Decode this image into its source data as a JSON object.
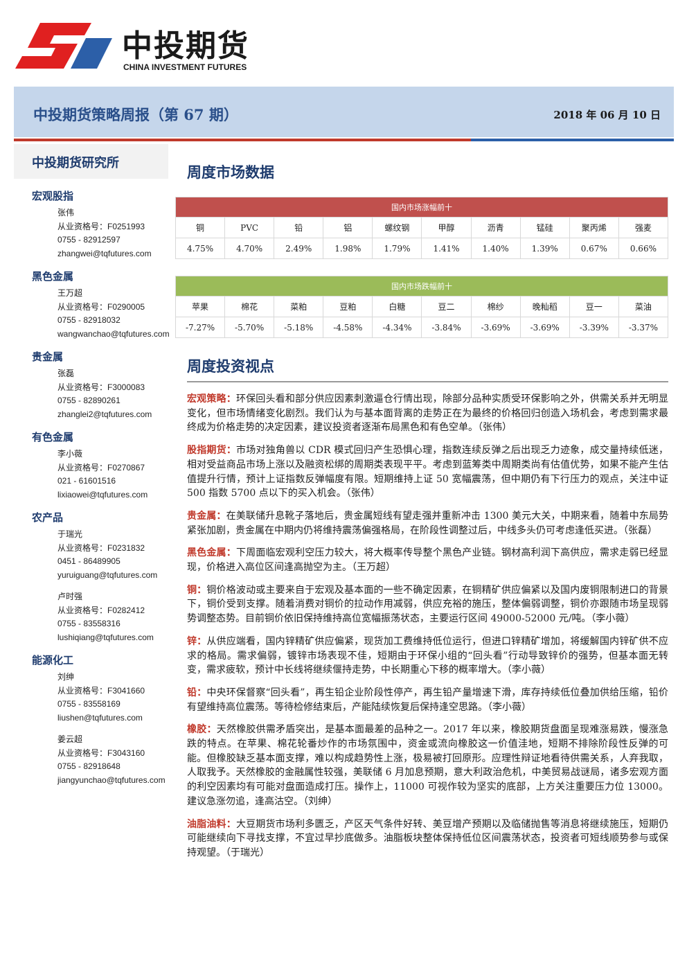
{
  "header": {
    "logo_cn": "中投期货",
    "logo_en": "CHINA INVESTMENT FUTURES",
    "title": "中投期货策略周报（第 67 期）",
    "date": "2018 年 06 月 10 日"
  },
  "sidebar": {
    "institute": "中投期货研究所",
    "sections": [
      {
        "title": "宏观股指",
        "analysts": [
          {
            "name": "张伟",
            "license": "从业资格号：F0251993",
            "phone": "0755 - 82912597",
            "email": "zhangwei@tqfutures.com"
          }
        ]
      },
      {
        "title": "黑色金属",
        "analysts": [
          {
            "name": "王万超",
            "license": "从业资格号：F0290005",
            "phone": "0755 - 82918032",
            "email": "wangwanchao@tqfutures.com"
          }
        ]
      },
      {
        "title": "贵金属",
        "analysts": [
          {
            "name": "张磊",
            "license": "从业资格号：F3000083",
            "phone": "0755 - 82890261",
            "email": "zhanglei2@tqfutures.com"
          }
        ]
      },
      {
        "title": "有色金属",
        "analysts": [
          {
            "name": "李小薇",
            "license": "从业资格号：F0270867",
            "phone": "021 - 61601516",
            "email": "lixiaowei@tqfutures.com"
          }
        ]
      },
      {
        "title": "农产品",
        "analysts": [
          {
            "name": "于瑞光",
            "license": "从业资格号：F0231832",
            "phone": "0451 - 86489905",
            "email": "yuruiguang@tqfutures.com"
          },
          {
            "name": "卢时强",
            "license": "从业资格号：F0282412",
            "phone": "0755 - 83558316",
            "email": "lushiqiang@tqfutures.com"
          }
        ]
      },
      {
        "title": "能源化工",
        "analysts": [
          {
            "name": "刘绅",
            "license": "从业资格号：F3041660",
            "phone": "0755 - 83558169",
            "email": "liushen@tqfutures.com"
          },
          {
            "name": "姜云超",
            "license": "从业资格号：F3043160",
            "phone": "0755 - 82918648",
            "email": "jiangyunchao@tqfutures.com"
          }
        ]
      }
    ]
  },
  "market": {
    "title": "周度市场数据",
    "tables": [
      {
        "caption": "国内市场涨幅前十",
        "headers": [
          "铜",
          "PVC",
          "铅",
          "铝",
          "螺纹钢",
          "甲醇",
          "沥青",
          "锰硅",
          "聚丙烯",
          "强麦"
        ],
        "values": [
          "4.75%",
          "4.70%",
          "2.49%",
          "1.98%",
          "1.79%",
          "1.41%",
          "1.40%",
          "1.39%",
          "0.67%",
          "0.66%"
        ]
      },
      {
        "caption": "国内市场跌幅前十",
        "headers": [
          "苹果",
          "棉花",
          "菜粕",
          "豆粕",
          "白糖",
          "豆二",
          "棉纱",
          "晚籼稻",
          "豆一",
          "菜油"
        ],
        "values": [
          "-7.27%",
          "-5.70%",
          "-5.18%",
          "-4.58%",
          "-4.34%",
          "-3.84%",
          "-3.69%",
          "-3.69%",
          "-3.39%",
          "-3.37%"
        ]
      }
    ]
  },
  "views": {
    "title": "周度投资视点",
    "paragraphs": [
      {
        "label": "宏观策略：",
        "text": "环保回头看和部分供应因素刺激逼仓行情出现，除部分品种实质受环保影响之外，供需关系并无明显变化，但市场情绪变化剧烈。我们认为与基本面背离的走势正在为最终的价格回归创造入场机会，考虑到需求最终成为价格走势的决定因素，建议投资者逐渐布局黑色和有色空单。（张伟）"
      },
      {
        "label": "股指期货：",
        "text": "市场对独角兽以 CDR 模式回归产生恐惧心理，指数连续反弹之后出现乏力迹象，成交量持续低迷，相对受益商品市场上涨以及融资松绑的周期类表现平平。考虑到蓝筹类中周期类尚有估值优势，如果不能产生估值提升行情，预计上证指数反弹幅度有限。短期维持上证 50 宽幅震荡，但中期仍有下行压力的观点，关注中证 500 指数 5700 点以下的买入机会。（张伟）"
      },
      {
        "label": "贵金属：",
        "text": "在美联储升息靴子落地后，贵金属短线有望走强并重新冲击 1300 美元大关，中期来看，随着中东局势紧张加剧，贵金属在中期内仍将维持震荡偏强格局，在阶段性调整过后，中线多头仍可考虑逢低买进。（张磊）"
      },
      {
        "label": "黑色金属：",
        "text": "下周面临宏观利空压力较大，将大概率传导整个黑色产业链。钢材高利润下高供应，需求走弱已经显现，价格进入高位区间逢高抛空为主。（王万超）"
      },
      {
        "label": "铜：",
        "text": "铜价格波动或主要来自于宏观及基本面的一些不确定因素，在铜精矿供应偏紧以及国内废铜限制进口的背景下，铜价受到支撑。随着消费对铜价的拉动作用减弱，供应充裕的施压，整体偏弱调整，铜价亦跟随市场呈现弱势调整态势。目前铜价依旧保持维持高位宽幅振荡状态，主要运行区间 49000-52000 元/吨。（李小薇）"
      },
      {
        "label": "锌：",
        "text": "从供应端看，国内锌精矿供应偏紧，现货加工费维持低位运行，但进口锌精矿增加，将缓解国内锌矿供不应求的格局。需求偏弱，镀锌市场表现不佳，短期由于环保小组的“回头看”行动导致锌价的强势，但基本面无转变，需求疲软，预计中长线将继续偃持走势，中长期重心下移的概率增大。（李小薇）"
      },
      {
        "label": "铅：",
        "text": "中央环保督察“回头看”，再生铅企业阶段性停产，再生铅产量增速下滑，库存持续低位叠加供给压缩，铅价有望维持高位震荡。等待检修结束后，产能陆续恢复后保持逢空思路。（李小薇）"
      },
      {
        "label": "橡胶：",
        "text": "天然橡胶供需矛盾突出，是基本面最差的品种之一。2017 年以来，橡胶期货盘面呈现难涨易跌，慢涨急跌的特点。在苹果、棉花轮番炒作的市场氛围中，资金或流向橡胶这一价值洼地，短期不排除阶段性反弹的可能。但橡胶缺乏基本面支撑，难以构成趋势性上涨，极易被打回原形。应理性辩证地看待供需关系，人弃我取，人取我予。天然橡胶的金融属性较强，美联储 6 月加息预期，意大利政治危机，中美贸易战谜局，诸多宏观方面的利空因素均有可能对盘面造成打压。操作上，11000 可视作较为坚实的底部，上方关注重要压力位 13000。建议急涨勿追，逢高沽空。（刘绅）"
      },
      {
        "label": "油脂油料：",
        "text": "大豆期货市场利多匮乏，产区天气条件好转、美豆增产预期以及临储抛售等消息将继续施压，短期仍可能继续向下寻找支撑，不宜过早抄底做多。油脂板块整体保持低位区间震荡状态，投资者可短线顺势参与或保持观望。（于瑞光）"
      }
    ]
  }
}
